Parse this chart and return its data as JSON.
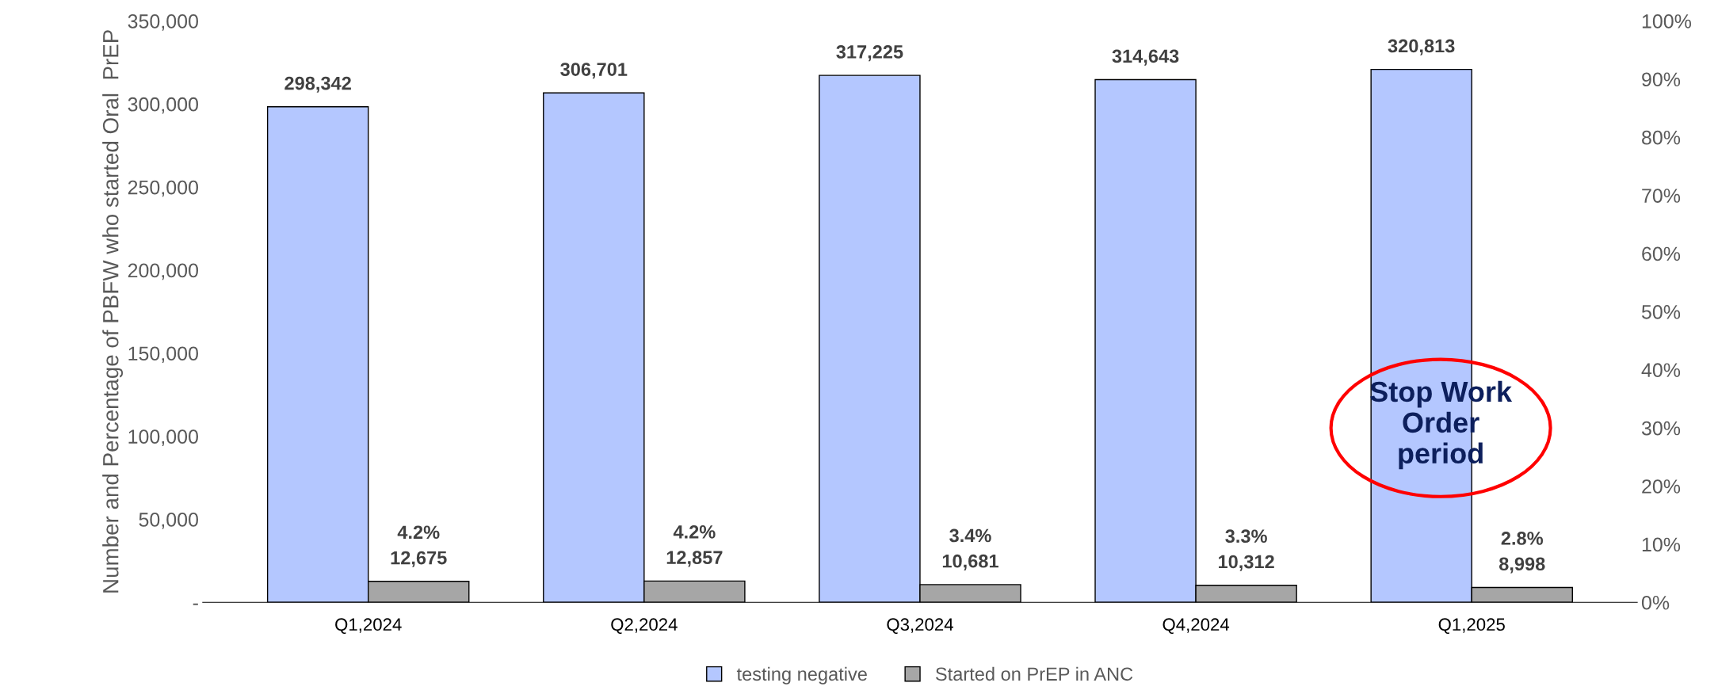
{
  "chart_data": {
    "type": "bar",
    "categories": [
      "Q1,2024",
      "Q2,2024",
      "Q3,2024",
      "Q4,2024",
      "Q1,2025"
    ],
    "ylabel": "Number and Percentage of PBFW who started Oral  PrEP",
    "series": [
      {
        "name": "testing negative",
        "color": "#b4c7ff",
        "values": [
          298342,
          306701,
          317225,
          314643,
          320813
        ],
        "value_labels": [
          "298,342",
          "306,701",
          "317,225",
          "314,643",
          "320,813"
        ]
      },
      {
        "name": "Started on PrEP in ANC",
        "color": "#a6a6a6",
        "values": [
          12675,
          12857,
          10681,
          10312,
          8998
        ],
        "value_labels": [
          "4.2%\n12,675",
          "4.2%\n12,857",
          "3.4%\n10,681",
          "3.3%\n10,312",
          "2.8%\n8,998"
        ]
      }
    ],
    "ylim": [
      0,
      350000
    ],
    "yticks": [
      {
        "value": 0,
        "label": "-"
      },
      {
        "value": 50000,
        "label": "50,000"
      },
      {
        "value": 100000,
        "label": "100,000"
      },
      {
        "value": 150000,
        "label": "150,000"
      },
      {
        "value": 200000,
        "label": "200,000"
      },
      {
        "value": 250000,
        "label": "250,000"
      },
      {
        "value": 300000,
        "label": "300,000"
      },
      {
        "value": 350000,
        "label": "350,000"
      }
    ],
    "y2lim": [
      0,
      100
    ],
    "y2ticks": [
      {
        "value": 0,
        "label": "0%"
      },
      {
        "value": 10,
        "label": "10%"
      },
      {
        "value": 20,
        "label": "20%"
      },
      {
        "value": 30,
        "label": "30%"
      },
      {
        "value": 40,
        "label": "40%"
      },
      {
        "value": 50,
        "label": "50%"
      },
      {
        "value": 60,
        "label": "60%"
      },
      {
        "value": 70,
        "label": "70%"
      },
      {
        "value": 80,
        "label": "80%"
      },
      {
        "value": 90,
        "label": "90%"
      },
      {
        "value": 100,
        "label": "100%"
      }
    ],
    "annotations": [
      "Stop Work\nOrder\nperiod"
    ],
    "legend": "bottom",
    "grid": false
  }
}
